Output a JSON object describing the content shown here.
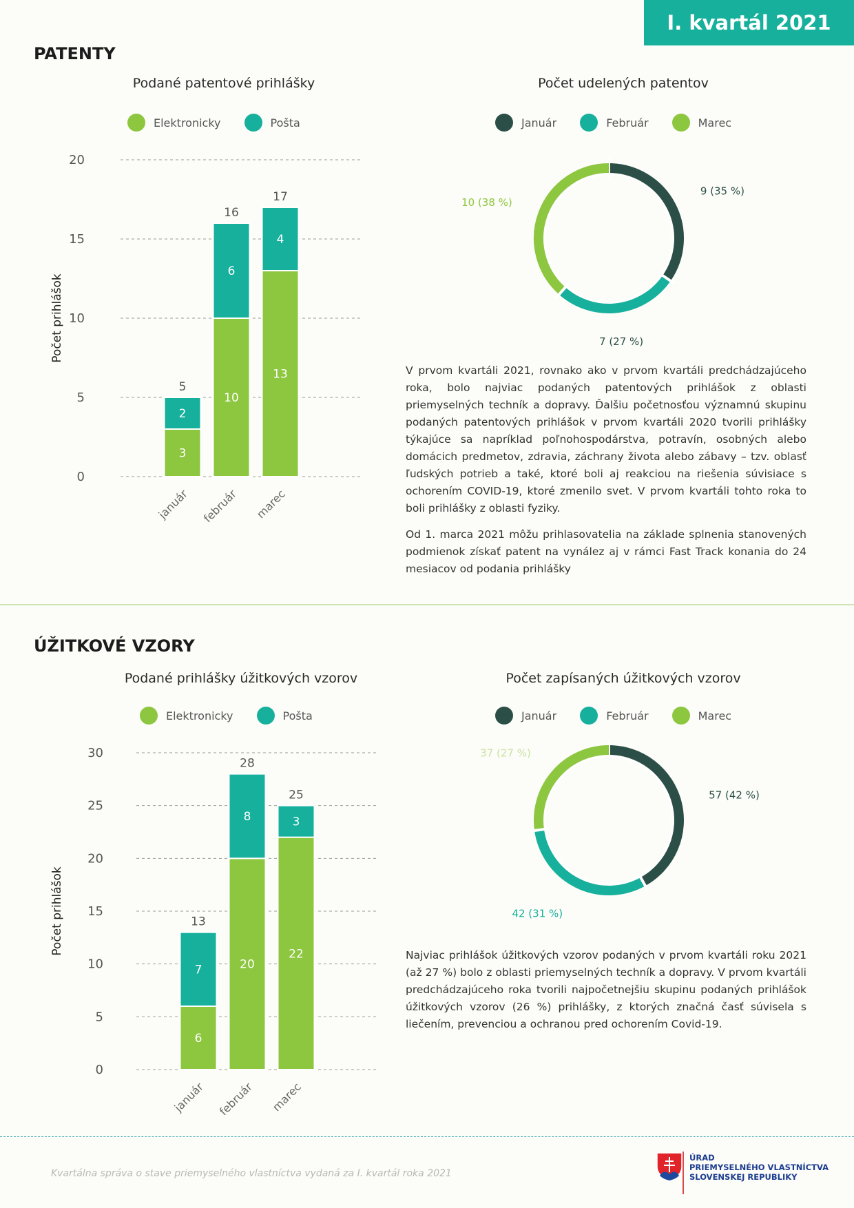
{
  "header": {
    "badge": "I. kvartál 2021"
  },
  "colors": {
    "elektronicky": "#8dc63f",
    "posta": "#16b09c",
    "januar": "#2b4f47",
    "februar": "#16b09c",
    "marec": "#8dc63f"
  },
  "patenty": {
    "section_title": "PATENTY",
    "bar_title": "Podané patentové prihlášky",
    "bar_legend": [
      "Elektronicky",
      "Pošta"
    ],
    "donut_title": "Počet udelených patentov",
    "donut_legend": [
      "Január",
      "Február",
      "Marec"
    ],
    "paragraphs": [
      "V prvom kvartáli 2021, rovnako ako v prvom kvartáli predchádzajúceho roka, bolo najviac podaných patentových prihlášok z oblasti priemyselných techník a dopravy. Ďalšiu početnosťou významnú skupinu podaných patentových prihlášok v prvom kvartáli 2020 tvorili prihlášky týkajúce sa napríklad poľnohospodárstva, potravín, osobných alebo domácich predmetov, zdravia, záchrany života alebo zábavy – tzv. oblasť ľudských potrieb a také, ktoré boli aj reakciou na riešenia súvisiace s ochorením COVID-19, ktoré zmenilo svet. V prvom kvartáli tohto roka to boli prihlášky z oblasti fyziky.",
      "Od 1. marca 2021 môžu prihlasovatelia na základe splnenia stanovených podmienok získať patent na vynález aj v rámci Fast Track konania do 24 mesiacov od podania prihlášky"
    ]
  },
  "vzory": {
    "section_title": "ÚŽITKOVÉ VZORY",
    "bar_title": "Podané prihlášky úžitkových vzorov",
    "bar_legend": [
      "Elektronicky",
      "Pošta"
    ],
    "donut_title": "Počet zapísaných úžitkových vzorov",
    "donut_legend": [
      "Január",
      "Február",
      "Marec"
    ],
    "paragraphs": [
      "Najviac prihlášok úžitkových vzorov podaných v prvom kvartáli roku 2021 (až 27 %) bolo z oblasti priemyselných techník a dopravy. V prvom kvartáli predchádzajúceho roka tvorili najpočetnejšiu skupinu podaných prihlášok úžitkových vzorov (26 %) prihlášky, z ktorých značná časť súvisela s liečením, prevenciou a ochranou pred ochorením Covid-19."
    ]
  },
  "footer": {
    "text": "Kvartálna správa o stave priemyselného vlastníctva vydaná za I. kvartál roka 2021",
    "logo_lines": [
      "ÚRAD",
      "PRIEMYSELNÉHO VLASTNÍCTVA",
      "SLOVENSKEJ REPUBLIKY"
    ]
  },
  "chart_data": [
    {
      "type": "bar",
      "stacked": true,
      "title": "Podané patentové prihlášky",
      "ylabel": "Počet prihlášok",
      "categories": [
        "január",
        "február",
        "marec"
      ],
      "series": [
        {
          "name": "Elektronicky",
          "values": [
            3,
            10,
            13
          ]
        },
        {
          "name": "Pošta",
          "values": [
            2,
            6,
            4
          ]
        }
      ],
      "totals": [
        5,
        16,
        17
      ],
      "ylim": [
        0,
        20
      ],
      "yticks": [
        0,
        5,
        10,
        15,
        20
      ],
      "grid": true,
      "legend": "top"
    },
    {
      "type": "pie",
      "donut": true,
      "title": "Počet udelených patentov",
      "categories": [
        "Január",
        "Február",
        "Marec"
      ],
      "values": [
        9,
        7,
        10
      ],
      "labels": [
        "9 (35 %)",
        "7 (27 %)",
        "10 (38 %)"
      ],
      "legend": "top"
    },
    {
      "type": "bar",
      "stacked": true,
      "title": "Podané prihlášky úžitkových vzorov",
      "ylabel": "Počet prihlášok",
      "categories": [
        "január",
        "február",
        "marec"
      ],
      "series": [
        {
          "name": "Elektronicky",
          "values": [
            6,
            20,
            22
          ]
        },
        {
          "name": "Pošta",
          "values": [
            7,
            8,
            3
          ]
        }
      ],
      "totals": [
        13,
        28,
        25
      ],
      "ylim": [
        0,
        30
      ],
      "yticks": [
        0,
        5,
        10,
        15,
        20,
        25,
        30
      ],
      "grid": true,
      "legend": "top"
    },
    {
      "type": "pie",
      "donut": true,
      "title": "Počet zapísaných úžitkových vzorov",
      "categories": [
        "Január",
        "Február",
        "Marec"
      ],
      "values": [
        57,
        42,
        37
      ],
      "labels": [
        "57 (42 %)",
        "42 (31 %)",
        "37 (27 %)"
      ],
      "legend": "top"
    }
  ]
}
